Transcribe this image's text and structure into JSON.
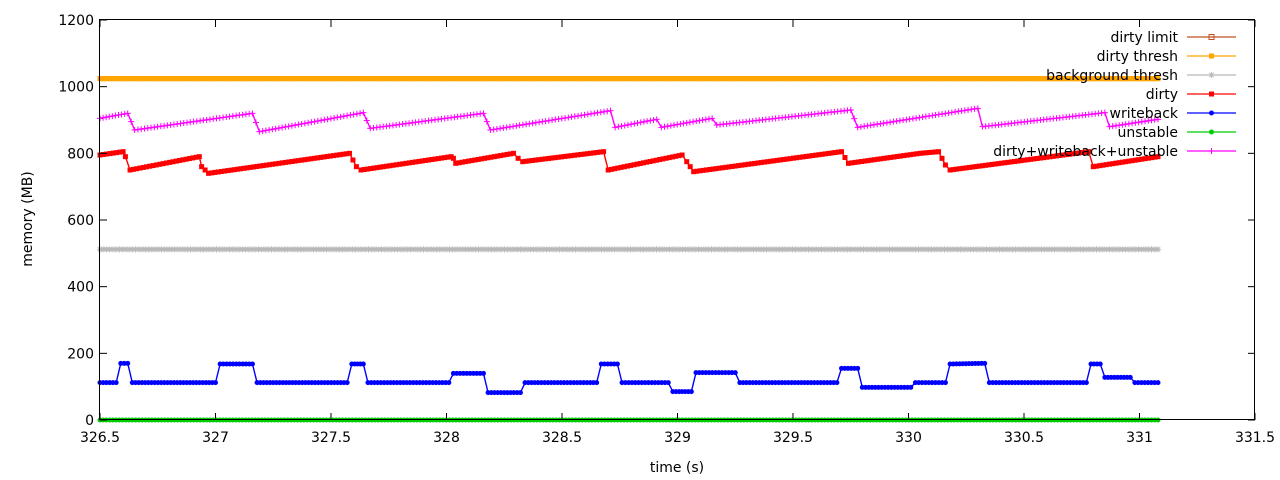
{
  "chart_data": {
    "type": "line",
    "title": "",
    "xlabel": "time (s)",
    "ylabel": "memory (MB)",
    "xlim": [
      326.5,
      331.5
    ],
    "ylim": [
      0,
      1200
    ],
    "xticks": [
      "326.5",
      "327",
      "327.5",
      "328",
      "328.5",
      "329",
      "329.5",
      "330",
      "330.5",
      "331",
      "331.5"
    ],
    "yticks": [
      "0",
      "200",
      "400",
      "600",
      "800",
      "1000",
      "1200"
    ],
    "grid": false,
    "legend_position": "top-right",
    "series": [
      {
        "name": "dirty limit",
        "color": "#c05020",
        "marker": "open-square",
        "x": [],
        "y": []
      },
      {
        "name": "dirty thresh",
        "color": "#ffa500",
        "marker": "filled-square",
        "x": [
          326.5,
          331.08
        ],
        "y": [
          1024,
          1024
        ]
      },
      {
        "name": "background thresh",
        "color": "#b8b8b8",
        "marker": "asterisk",
        "x": [
          326.5,
          331.08
        ],
        "y": [
          512,
          512
        ]
      },
      {
        "name": "dirty",
        "color": "#ff0000",
        "marker": "filled-square",
        "x": [
          326.5,
          326.6,
          326.61,
          326.63,
          326.93,
          326.94,
          326.97,
          327.58,
          327.61,
          327.63,
          328.02,
          328.03,
          328.04,
          328.29,
          328.31,
          328.33,
          328.68,
          328.7,
          329.02,
          329.04,
          329.07,
          329.71,
          329.74,
          330.05,
          330.13,
          330.16,
          330.18,
          330.78,
          330.8,
          331.08
        ],
        "y": [
          795,
          805,
          790,
          750,
          790,
          760,
          740,
          800,
          760,
          750,
          790,
          785,
          770,
          800,
          785,
          775,
          805,
          750,
          795,
          775,
          745,
          805,
          770,
          800,
          805,
          765,
          750,
          805,
          760,
          790
        ]
      },
      {
        "name": "writeback",
        "color": "#0000ff",
        "marker": "filled-circle",
        "x": [
          326.5,
          326.57,
          326.59,
          326.62,
          326.64,
          327.0,
          327.02,
          327.16,
          327.18,
          327.57,
          327.59,
          327.64,
          327.66,
          328.01,
          328.03,
          328.16,
          328.18,
          328.32,
          328.34,
          328.65,
          328.67,
          328.74,
          328.76,
          328.96,
          328.98,
          329.06,
          329.08,
          329.25,
          329.27,
          329.69,
          329.71,
          329.78,
          329.8,
          330.01,
          330.03,
          330.16,
          330.18,
          330.33,
          330.35,
          330.77,
          330.79,
          330.83,
          330.85,
          330.96,
          330.98,
          331.08
        ],
        "y": [
          112,
          112,
          170,
          170,
          112,
          112,
          168,
          168,
          112,
          112,
          168,
          168,
          112,
          112,
          140,
          140,
          82,
          82,
          112,
          112,
          168,
          168,
          112,
          112,
          85,
          85,
          142,
          142,
          112,
          112,
          155,
          155,
          98,
          98,
          112,
          112,
          168,
          170,
          112,
          112,
          168,
          168,
          128,
          128,
          112,
          112
        ]
      },
      {
        "name": "unstable",
        "color": "#00cc00",
        "marker": "filled-circle",
        "x": [
          326.5,
          331.08
        ],
        "y": [
          0,
          0
        ]
      },
      {
        "name": "dirty+writeback+unstable",
        "color": "#ff00ff",
        "marker": "plus",
        "x": [
          326.5,
          326.62,
          326.65,
          327.16,
          327.19,
          327.64,
          327.67,
          328.16,
          328.19,
          328.71,
          328.73,
          328.91,
          328.93,
          329.15,
          329.17,
          329.75,
          329.78,
          330.3,
          330.32,
          330.85,
          330.87,
          331.08
        ],
        "y": [
          905,
          920,
          870,
          920,
          865,
          922,
          875,
          920,
          870,
          928,
          878,
          902,
          878,
          905,
          885,
          930,
          878,
          935,
          880,
          922,
          880,
          902
        ]
      }
    ]
  }
}
